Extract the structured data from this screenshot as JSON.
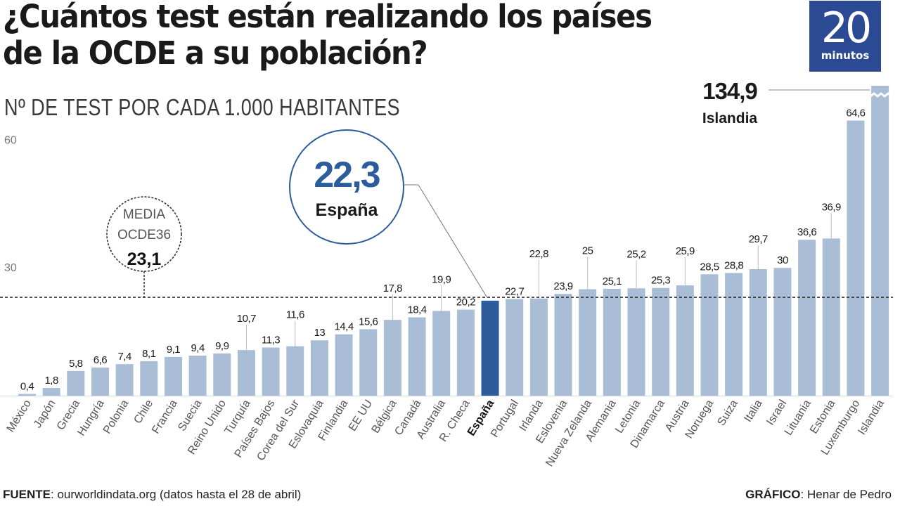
{
  "header": {
    "title_line1": "¿Cuántos test están realizando los países",
    "title_line2": "de la OCDE a su población?",
    "subtitle": "Nº DE TEST POR CADA 1.000 HABITANTES"
  },
  "logo": {
    "number": "20",
    "word": "minutos",
    "color": "#2c4a94"
  },
  "footer": {
    "source_label": "FUENTE",
    "source_text": ": ourworldindata.org (datos hasta el 28 de abril)",
    "credit_label": "GRÁFICO",
    "credit_text": ": Henar de Pedro"
  },
  "colors": {
    "bar": "#a9bdd6",
    "highlight": "#2d5c9c",
    "text": "#1a1a1a",
    "axis_text": "#777777"
  },
  "chart_data": {
    "type": "bar",
    "title": "¿Cuántos test están realizando los países de la OCDE a su población?",
    "subtitle": "Nº DE TEST POR CADA 1.000 HABITANTES",
    "xlabel": "",
    "ylabel": "Nº de test por cada 1.000 habitantes",
    "ylim": [
      0,
      65
    ],
    "yticks": [
      30,
      60
    ],
    "ytick_labels": [
      "30",
      "60"
    ],
    "grid": false,
    "categories": [
      "México",
      "Japón",
      "Grecia",
      "Hungría",
      "Polonia",
      "Chile",
      "Francia",
      "Suecia",
      "Reino Unido",
      "Turquía",
      "Países Bajos",
      "Corea del Sur",
      "Eslovaquia",
      "Finlandia",
      "EE UU",
      "Bélgica",
      "Canadá",
      "Australia",
      "R. Checa",
      "España",
      "Portugal",
      "Irlanda",
      "Eslovenia",
      "Nueva Zelanda",
      "Alemania",
      "Letonia",
      "Dinamarca",
      "Austria",
      "Noruega",
      "Suiza",
      "Italia",
      "Israel",
      "Lituania",
      "Estonia",
      "Luxemburgo",
      "Islandia"
    ],
    "values": [
      0.4,
      1.8,
      5.8,
      6.6,
      7.4,
      8.1,
      9.1,
      9.4,
      9.9,
      10.7,
      11.3,
      11.6,
      13,
      14.4,
      15.6,
      17.8,
      18.4,
      19.9,
      20.2,
      22.3,
      22.7,
      22.8,
      23.9,
      25,
      25.1,
      25.2,
      25.3,
      25.9,
      28.5,
      28.8,
      29.7,
      30,
      36.6,
      36.9,
      64.6,
      134.9
    ],
    "value_labels": [
      "0,4",
      "1,8",
      "5,8",
      "6,6",
      "7,4",
      "8,1",
      "9,1",
      "9,4",
      "9,9",
      "10,7",
      "11,3",
      "11,6",
      "13",
      "14,4",
      "15,6",
      "17,8",
      "18,4",
      "19,9",
      "20,2",
      "",
      "22,7",
      "22,8",
      "23,9",
      "25",
      "25,1",
      "25,2",
      "25,3",
      "25,9",
      "28,5",
      "28,8",
      "29,7",
      "30",
      "36,6",
      "36,9",
      "64,6",
      ""
    ],
    "highlight_category": "España",
    "broken_bar_category": "Islandia",
    "reference_line": {
      "value": 23.1,
      "label_line1": "MEDIA",
      "label_line2": "OCDE36",
      "value_label": "23,1"
    },
    "annotations": [
      {
        "category": "España",
        "value_label": "22,3",
        "name": "España"
      },
      {
        "category": "Islandia",
        "value_label": "134,9",
        "name": "Islandia"
      }
    ]
  }
}
